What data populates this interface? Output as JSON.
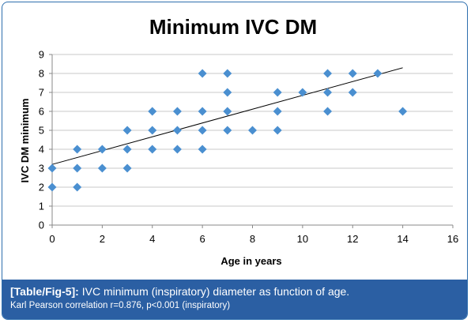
{
  "chart_data": {
    "type": "scatter",
    "title": "Minimum IVC DM",
    "xlabel": "Age in years",
    "ylabel": "IVC DM minimum",
    "xlim": [
      0,
      16
    ],
    "ylim": [
      0,
      9
    ],
    "x_ticks": [
      "0",
      "2",
      "4",
      "6",
      "8",
      "10",
      "12",
      "14",
      "16"
    ],
    "y_ticks": [
      "0",
      "1",
      "2",
      "3",
      "4",
      "5",
      "6",
      "7",
      "8",
      "9"
    ],
    "grid": "horizontal",
    "legend": "none",
    "marker": "diamond",
    "colors": {
      "marker": "#4a8fd0",
      "trendline": "#000000",
      "gridline": "#c8c8c8"
    },
    "points": [
      {
        "x": 0,
        "y": 2
      },
      {
        "x": 0,
        "y": 3
      },
      {
        "x": 1,
        "y": 2
      },
      {
        "x": 1,
        "y": 3
      },
      {
        "x": 1,
        "y": 4
      },
      {
        "x": 2,
        "y": 3
      },
      {
        "x": 2,
        "y": 4
      },
      {
        "x": 3,
        "y": 3
      },
      {
        "x": 3,
        "y": 4
      },
      {
        "x": 3,
        "y": 5
      },
      {
        "x": 4,
        "y": 4
      },
      {
        "x": 4,
        "y": 5
      },
      {
        "x": 4,
        "y": 6
      },
      {
        "x": 5,
        "y": 4
      },
      {
        "x": 5,
        "y": 5
      },
      {
        "x": 5,
        "y": 6
      },
      {
        "x": 6,
        "y": 4
      },
      {
        "x": 6,
        "y": 5
      },
      {
        "x": 6,
        "y": 6
      },
      {
        "x": 6,
        "y": 8
      },
      {
        "x": 7,
        "y": 5
      },
      {
        "x": 7,
        "y": 6
      },
      {
        "x": 7,
        "y": 7
      },
      {
        "x": 7,
        "y": 8
      },
      {
        "x": 8,
        "y": 5
      },
      {
        "x": 9,
        "y": 5
      },
      {
        "x": 9,
        "y": 6
      },
      {
        "x": 9,
        "y": 7
      },
      {
        "x": 10,
        "y": 7
      },
      {
        "x": 11,
        "y": 6
      },
      {
        "x": 11,
        "y": 7
      },
      {
        "x": 11,
        "y": 8
      },
      {
        "x": 12,
        "y": 7
      },
      {
        "x": 12,
        "y": 8
      },
      {
        "x": 13,
        "y": 8
      },
      {
        "x": 14,
        "y": 6
      }
    ],
    "trendline": {
      "x": [
        0,
        14
      ],
      "y": [
        3.2,
        8.3
      ]
    }
  },
  "caption": {
    "tag": "[Table/Fig-5]:",
    "text": " IVC minimum (inspiratory) diameter as function of age.",
    "note": "Karl Pearson correlation r=0.876, p<0.001 (inspiratory)"
  }
}
